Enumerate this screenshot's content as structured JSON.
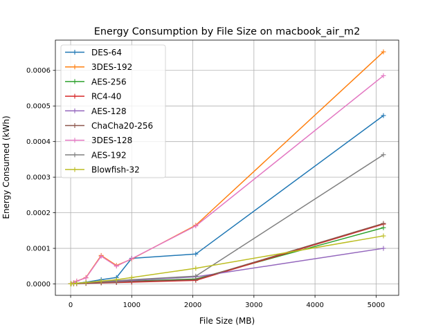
{
  "chart_data": {
    "type": "line",
    "title": "Energy Consumption by File Size on macbook_air_m2",
    "xlabel": "File Size (MB)",
    "ylabel": "Energy Consumed (kWh)",
    "xlim": [
      -250,
      5370
    ],
    "ylim": [
      -3.2e-05,
      0.000685
    ],
    "xticks": [
      0,
      1000,
      2000,
      3000,
      4000,
      5000
    ],
    "xtick_labels": [
      "0",
      "1000",
      "2000",
      "3000",
      "4000",
      "5000"
    ],
    "yticks": [
      0.0,
      0.0001,
      0.0002,
      0.0003,
      0.0004,
      0.0005,
      0.0006
    ],
    "ytick_labels": [
      "0.0000",
      "0.0001",
      "0.0002",
      "0.0003",
      "0.0004",
      "0.0005",
      "0.0006"
    ],
    "grid": true,
    "legend_position": "top-left",
    "x": [
      1,
      10,
      50,
      100,
      250,
      500,
      750,
      1000,
      2048,
      5120
    ],
    "series": [
      {
        "name": "DES-64",
        "color": "#1f77b4",
        "values": [
          2e-07,
          5e-07,
          1e-06,
          2e-06,
          5e-06,
          1.2e-05,
          1.8e-05,
          7.2e-05,
          8.4e-05,
          0.000473
        ]
      },
      {
        "name": "3DES-192",
        "color": "#ff7f0e",
        "values": [
          4e-07,
          1e-06,
          4e-06,
          8e-06,
          1.8e-05,
          8e-05,
          5.2e-05,
          7e-05,
          0.000165,
          0.000652
        ]
      },
      {
        "name": "AES-256",
        "color": "#2ca02c",
        "values": [
          1e-07,
          2e-07,
          5e-07,
          1e-06,
          2e-06,
          4e-06,
          6e-06,
          8e-06,
          1.4e-05,
          0.000158
        ]
      },
      {
        "name": "RC4-40",
        "color": "#d62728",
        "values": [
          1e-07,
          2e-07,
          4e-07,
          8e-07,
          1.5e-06,
          3e-06,
          4e-06,
          5e-06,
          1e-05,
          0.000168
        ]
      },
      {
        "name": "AES-128",
        "color": "#9467bd",
        "values": [
          1e-07,
          2e-07,
          5e-07,
          1e-06,
          2e-06,
          5e-06,
          7e-06,
          1e-05,
          2e-05,
          0.0001
        ]
      },
      {
        "name": "ChaCha20-256",
        "color": "#8c564b",
        "values": [
          1e-07,
          2e-07,
          5e-07,
          1e-06,
          2e-06,
          4e-06,
          5e-06,
          7e-06,
          1.2e-05,
          0.00017
        ]
      },
      {
        "name": "3DES-128",
        "color": "#e377c2",
        "values": [
          4e-07,
          1e-06,
          4e-06,
          8e-06,
          1.7e-05,
          7.8e-05,
          5e-05,
          7.1e-05,
          0.000163,
          0.000585
        ]
      },
      {
        "name": "AES-192",
        "color": "#7f7f7f",
        "values": [
          1e-07,
          3e-07,
          1e-06,
          2e-06,
          4e-06,
          7e-06,
          9e-06,
          1.2e-05,
          2.2e-05,
          0.000363
        ]
      },
      {
        "name": "Blowfish-32",
        "color": "#bcbd22",
        "values": [
          2e-07,
          5e-07,
          1e-06,
          2e-06,
          4e-06,
          8e-06,
          1.2e-05,
          1.8e-05,
          4.4e-05,
          0.000135
        ]
      }
    ]
  }
}
